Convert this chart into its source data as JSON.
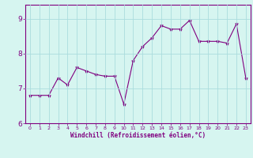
{
  "x": [
    0,
    1,
    2,
    3,
    4,
    5,
    6,
    7,
    8,
    9,
    10,
    11,
    12,
    13,
    14,
    15,
    16,
    17,
    18,
    19,
    20,
    21,
    22,
    23
  ],
  "y": [
    6.8,
    6.8,
    6.8,
    7.3,
    7.1,
    7.6,
    7.5,
    7.4,
    7.35,
    7.35,
    6.55,
    7.8,
    8.2,
    8.45,
    8.8,
    8.7,
    8.7,
    8.95,
    8.35,
    8.35,
    8.35,
    8.3,
    8.85,
    7.3
  ],
  "line_color": "#800080",
  "marker": "*",
  "marker_size": 3,
  "background_color": "#d6f5f0",
  "grid_color": "#aadddd",
  "xlabel": "Windchill (Refroidissement éolien,°C)",
  "xlabel_color": "#800080",
  "tick_color": "#800080",
  "xlim": [
    -0.5,
    23.5
  ],
  "ylim": [
    6.0,
    9.4
  ],
  "yticks": [
    6,
    7,
    8,
    9
  ],
  "xticks": [
    0,
    1,
    2,
    3,
    4,
    5,
    6,
    7,
    8,
    9,
    10,
    11,
    12,
    13,
    14,
    15,
    16,
    17,
    18,
    19,
    20,
    21,
    22,
    23
  ]
}
